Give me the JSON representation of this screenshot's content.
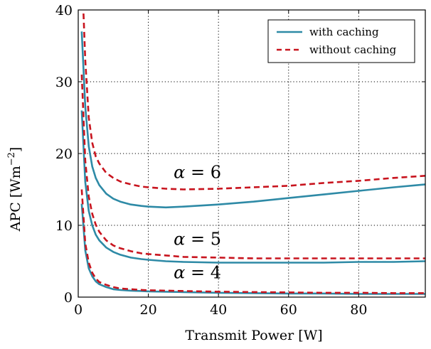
{
  "chart_data": {
    "type": "line",
    "xlabel": "Transmit Power [W]",
    "ylabel_main": "APC [Wm",
    "ylabel_sup": "−2",
    "ylabel_end": "]",
    "xlim": [
      0,
      99
    ],
    "ylim": [
      0,
      40
    ],
    "xticks": [
      0,
      20,
      40,
      60,
      80
    ],
    "yticks": [
      0,
      10,
      20,
      30,
      40
    ],
    "grid": true,
    "legend_position": "top-right",
    "legend": [
      {
        "label": "with caching",
        "color": "#2e8aa6",
        "dash": "solid"
      },
      {
        "label": "without caching",
        "color": "#c8141e",
        "dash": "dashed"
      }
    ],
    "annotations": [
      {
        "text": "α = 6",
        "x": 34,
        "y": 16.6
      },
      {
        "text": "α = 5",
        "x": 34,
        "y": 7.3
      },
      {
        "text": "α = 4",
        "x": 34,
        "y": 2.6
      }
    ],
    "series": [
      {
        "group": "alpha6",
        "color": "#2e8aa6",
        "dash": "solid",
        "x": [
          1,
          2,
          3,
          4,
          5,
          6,
          8,
          10,
          12,
          15,
          18,
          20,
          25,
          30,
          40,
          50,
          60,
          70,
          80,
          90,
          99
        ],
        "y": [
          37.0,
          26.5,
          21.0,
          18.2,
          16.6,
          15.6,
          14.4,
          13.7,
          13.3,
          12.9,
          12.7,
          12.6,
          12.5,
          12.6,
          12.9,
          13.3,
          13.8,
          14.3,
          14.8,
          15.3,
          15.7
        ]
      },
      {
        "group": "alpha6",
        "color": "#c8141e",
        "dash": "dashed",
        "x": [
          1.5,
          2,
          3,
          4,
          5,
          6,
          8,
          10,
          12,
          15,
          18,
          20,
          25,
          30,
          40,
          50,
          60,
          70,
          80,
          90,
          99
        ],
        "y": [
          39.5,
          33.0,
          25.0,
          21.5,
          19.6,
          18.6,
          17.3,
          16.6,
          16.1,
          15.7,
          15.4,
          15.3,
          15.1,
          15.0,
          15.1,
          15.3,
          15.5,
          15.9,
          16.2,
          16.6,
          16.9
        ]
      },
      {
        "group": "alpha5",
        "color": "#2e8aa6",
        "dash": "solid",
        "x": [
          1,
          2,
          3,
          4,
          5,
          6,
          8,
          10,
          12,
          15,
          18,
          20,
          25,
          30,
          40,
          50,
          60,
          70,
          80,
          90,
          99
        ],
        "y": [
          26.0,
          16.0,
          12.0,
          10.0,
          8.7,
          7.9,
          6.9,
          6.3,
          5.9,
          5.5,
          5.3,
          5.2,
          5.0,
          4.9,
          4.8,
          4.8,
          4.8,
          4.8,
          4.9,
          4.9,
          5.0
        ]
      },
      {
        "group": "alpha5",
        "color": "#c8141e",
        "dash": "dashed",
        "x": [
          1,
          2,
          3,
          4,
          5,
          6,
          8,
          10,
          12,
          15,
          18,
          20,
          25,
          30,
          40,
          50,
          60,
          70,
          80,
          90,
          99
        ],
        "y": [
          31.0,
          19.0,
          14.0,
          11.6,
          10.1,
          9.1,
          7.9,
          7.2,
          6.8,
          6.4,
          6.1,
          6.0,
          5.8,
          5.6,
          5.5,
          5.4,
          5.4,
          5.4,
          5.4,
          5.4,
          5.4
        ]
      },
      {
        "group": "alpha4",
        "color": "#2e8aa6",
        "dash": "solid",
        "x": [
          1,
          2,
          3,
          4,
          5,
          6,
          8,
          10,
          12,
          15,
          18,
          20,
          25,
          30,
          40,
          50,
          60,
          70,
          80,
          90,
          99
        ],
        "y": [
          13.0,
          6.5,
          4.0,
          2.9,
          2.2,
          1.8,
          1.4,
          1.1,
          1.0,
          0.9,
          0.85,
          0.8,
          0.75,
          0.7,
          0.6,
          0.55,
          0.5,
          0.5,
          0.45,
          0.45,
          0.45
        ]
      },
      {
        "group": "alpha4",
        "color": "#c8141e",
        "dash": "dashed",
        "x": [
          1,
          2,
          3,
          4,
          5,
          6,
          8,
          10,
          12,
          15,
          18,
          20,
          25,
          30,
          40,
          50,
          60,
          70,
          80,
          90,
          99
        ],
        "y": [
          15.0,
          7.5,
          4.8,
          3.4,
          2.6,
          2.1,
          1.7,
          1.4,
          1.2,
          1.1,
          1.0,
          0.95,
          0.9,
          0.85,
          0.75,
          0.7,
          0.65,
          0.6,
          0.6,
          0.55,
          0.55
        ]
      }
    ]
  }
}
